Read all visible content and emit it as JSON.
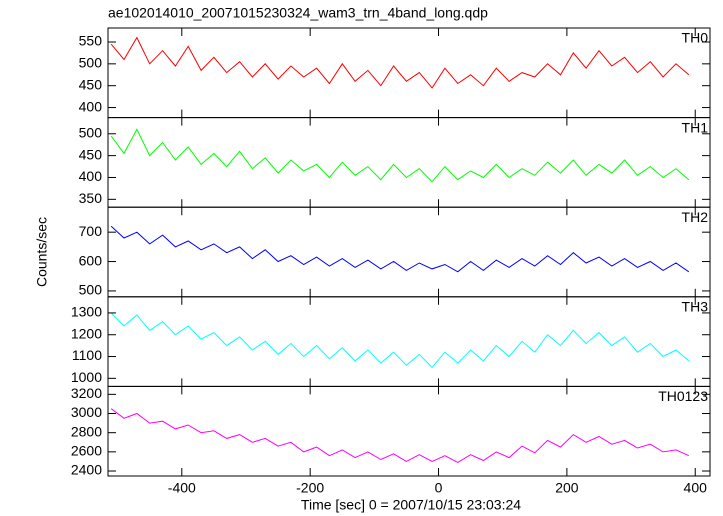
{
  "chart_data": {
    "type": "line",
    "title": "ae102014010_20071015230324_wam3_trn_4band_long.qdp",
    "xlabel": "Time [sec] 0 = 2007/10/15 23:03:24",
    "ylabel": "Counts/sec",
    "xlim": [
      -515,
      423
    ],
    "xticks": [
      -400,
      -200,
      0,
      200,
      400
    ],
    "x": [
      -510,
      -490,
      -470,
      -450,
      -430,
      -410,
      -390,
      -370,
      -350,
      -330,
      -310,
      -290,
      -270,
      -250,
      -230,
      -210,
      -190,
      -170,
      -150,
      -130,
      -110,
      -90,
      -70,
      -50,
      -30,
      -10,
      10,
      30,
      50,
      70,
      90,
      110,
      130,
      150,
      170,
      190,
      210,
      230,
      250,
      270,
      290,
      310,
      330,
      350,
      370,
      390
    ],
    "series": [
      {
        "name": "TH0",
        "color": "#ff0000",
        "ylim": [
          377,
          582
        ],
        "yticks": [
          400,
          450,
          500,
          550
        ],
        "values": [
          545,
          510,
          560,
          500,
          530,
          495,
          540,
          485,
          515,
          480,
          505,
          470,
          500,
          465,
          495,
          470,
          490,
          455,
          500,
          460,
          485,
          450,
          495,
          460,
          480,
          445,
          490,
          455,
          475,
          450,
          490,
          460,
          480,
          470,
          500,
          475,
          525,
          490,
          530,
          495,
          515,
          480,
          505,
          470,
          500,
          475
        ]
      },
      {
        "name": "TH1",
        "color": "#00ff00",
        "ylim": [
          332,
          537
        ],
        "yticks": [
          350,
          400,
          450,
          500
        ],
        "values": [
          495,
          455,
          510,
          450,
          480,
          440,
          470,
          430,
          455,
          425,
          460,
          420,
          445,
          410,
          440,
          415,
          430,
          400,
          435,
          405,
          425,
          395,
          430,
          400,
          420,
          390,
          425,
          395,
          415,
          400,
          430,
          400,
          420,
          405,
          435,
          410,
          440,
          405,
          430,
          410,
          440,
          405,
          425,
          400,
          420,
          395
        ]
      },
      {
        "name": "TH2",
        "color": "#0000ff",
        "ylim": [
          480,
          785
        ],
        "yticks": [
          500,
          600,
          700
        ],
        "values": [
          720,
          680,
          700,
          660,
          690,
          650,
          670,
          640,
          660,
          630,
          650,
          610,
          640,
          600,
          620,
          590,
          615,
          585,
          610,
          580,
          605,
          575,
          600,
          570,
          595,
          575,
          590,
          565,
          600,
          570,
          605,
          580,
          610,
          585,
          620,
          590,
          630,
          595,
          615,
          585,
          610,
          580,
          600,
          570,
          595,
          565
        ]
      },
      {
        "name": "TH3",
        "color": "#00ffff",
        "ylim": [
          963,
          1374
        ],
        "yticks": [
          1000,
          1100,
          1200,
          1300
        ],
        "values": [
          1300,
          1240,
          1290,
          1220,
          1260,
          1200,
          1240,
          1180,
          1210,
          1150,
          1190,
          1130,
          1170,
          1110,
          1160,
          1100,
          1150,
          1090,
          1140,
          1080,
          1130,
          1070,
          1120,
          1060,
          1110,
          1050,
          1120,
          1070,
          1130,
          1080,
          1150,
          1100,
          1170,
          1120,
          1200,
          1150,
          1220,
          1160,
          1210,
          1150,
          1190,
          1120,
          1160,
          1100,
          1130,
          1080
        ]
      },
      {
        "name": "TH0123",
        "color": "#ff00ff",
        "ylim": [
          2348,
          3283
        ],
        "yticks": [
          2400,
          2600,
          2800,
          3000,
          3200
        ],
        "values": [
          3050,
          2950,
          3000,
          2900,
          2920,
          2840,
          2880,
          2800,
          2820,
          2740,
          2780,
          2700,
          2740,
          2660,
          2700,
          2600,
          2650,
          2560,
          2620,
          2540,
          2600,
          2520,
          2580,
          2500,
          2570,
          2500,
          2560,
          2490,
          2570,
          2510,
          2600,
          2540,
          2660,
          2590,
          2720,
          2650,
          2780,
          2700,
          2760,
          2680,
          2720,
          2640,
          2680,
          2600,
          2620,
          2560
        ]
      }
    ]
  }
}
